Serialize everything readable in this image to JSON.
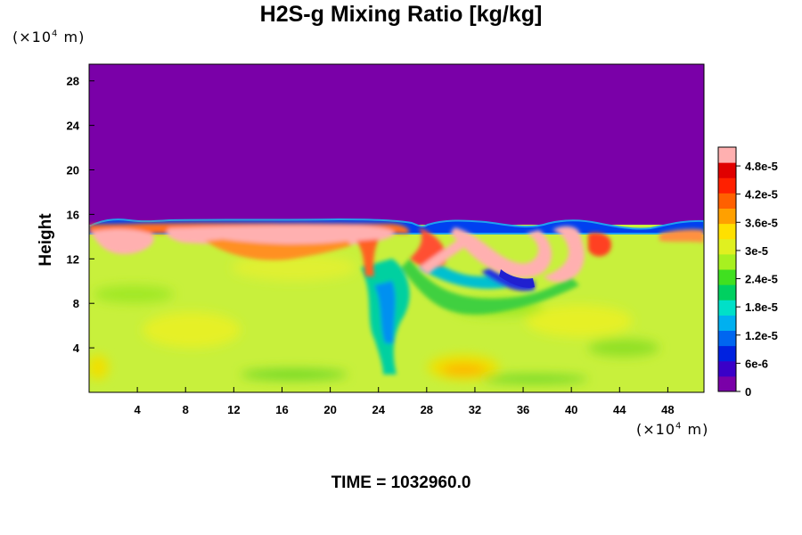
{
  "chart_data": {
    "type": "heatmap",
    "title": "H2S-g Mixing Ratio [kg/kg]",
    "ylabel": "Height",
    "y_unit": {
      "prefix": "(×10",
      "exp": "4",
      "suffix": " m)"
    },
    "x_unit": {
      "prefix": "(×10",
      "exp": "4",
      "suffix": " m)"
    },
    "xlim": [
      0,
      51
    ],
    "ylim": [
      0,
      29.5
    ],
    "x_ticks": [
      "4",
      "8",
      "12",
      "16",
      "20",
      "24",
      "28",
      "32",
      "36",
      "40",
      "44",
      "48"
    ],
    "y_ticks": [
      "4",
      "8",
      "12",
      "16",
      "20",
      "24",
      "28"
    ],
    "colorbar": {
      "ticks": [
        "0",
        "6e-6",
        "1.2e-5",
        "1.8e-5",
        "2.4e-5",
        "3e-5",
        "3.6e-5",
        "4.2e-5",
        "4.8e-5"
      ],
      "min": 0,
      "max": 5.2e-05,
      "colors": [
        "#7a00a8",
        "#3a00c8",
        "#0022e0",
        "#0066f0",
        "#00b0f0",
        "#00e0c8",
        "#00d060",
        "#40e020",
        "#a8f020",
        "#e0f020",
        "#ffe000",
        "#ffa000",
        "#ff6000",
        "#ff2000",
        "#e00000",
        "#ffb0b0"
      ]
    },
    "field_summary": {
      "upper_region_value": 0,
      "upper_region_color": "#7a00a8",
      "boundary_height": 15.5,
      "mid_value_typical": 3.3e-05,
      "high_value_cap": 5.2e-05
    },
    "time_label": "TIME = 1032960.0"
  }
}
